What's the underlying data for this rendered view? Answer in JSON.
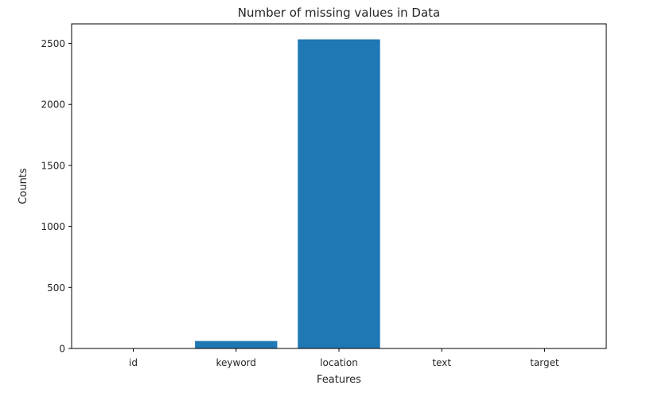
{
  "chart_data": {
    "type": "bar",
    "title": "Number of missing values in Data",
    "xlabel": "Features",
    "ylabel": "Counts",
    "categories": [
      "id",
      "keyword",
      "location",
      "text",
      "target"
    ],
    "values": [
      0,
      61,
      2533,
      0,
      0
    ],
    "ylim": [
      0,
      2660
    ],
    "yticks": [
      0,
      500,
      1000,
      1500,
      2000,
      2500
    ],
    "grid": false,
    "bar_color": "#1f77b4"
  }
}
